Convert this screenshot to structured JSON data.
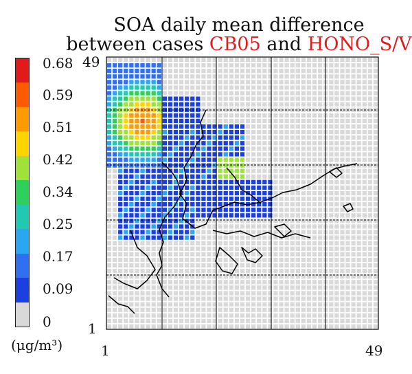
{
  "chart_data": {
    "type": "heatmap",
    "title_line1": "SOA daily mean difference",
    "title_line2_prefix": "between cases ",
    "case_a": "CB05",
    "title_line2_mid": " and ",
    "case_b": "HONO_S/V",
    "colorbar": {
      "ticks": [
        "0.68",
        "0.59",
        "0.51",
        "0.42",
        "0.34",
        "0.25",
        "0.17",
        "0.09",
        "0"
      ],
      "unit": "(μg/m³)",
      "colors": [
        "#e31a1c",
        "#ff5a00",
        "#ff9a00",
        "#ffd400",
        "#9ee23a",
        "#2ecf5a",
        "#22c9b2",
        "#2aa6f5",
        "#2f6ff0",
        "#1c3fe0",
        "#d9d9d9"
      ]
    },
    "x_axis": {
      "min_label": "1",
      "max_label": "49",
      "range": [
        1,
        49
      ]
    },
    "y_axis": {
      "min_label": "1",
      "max_label": "49",
      "range": [
        1,
        49
      ]
    },
    "grid": true
  }
}
